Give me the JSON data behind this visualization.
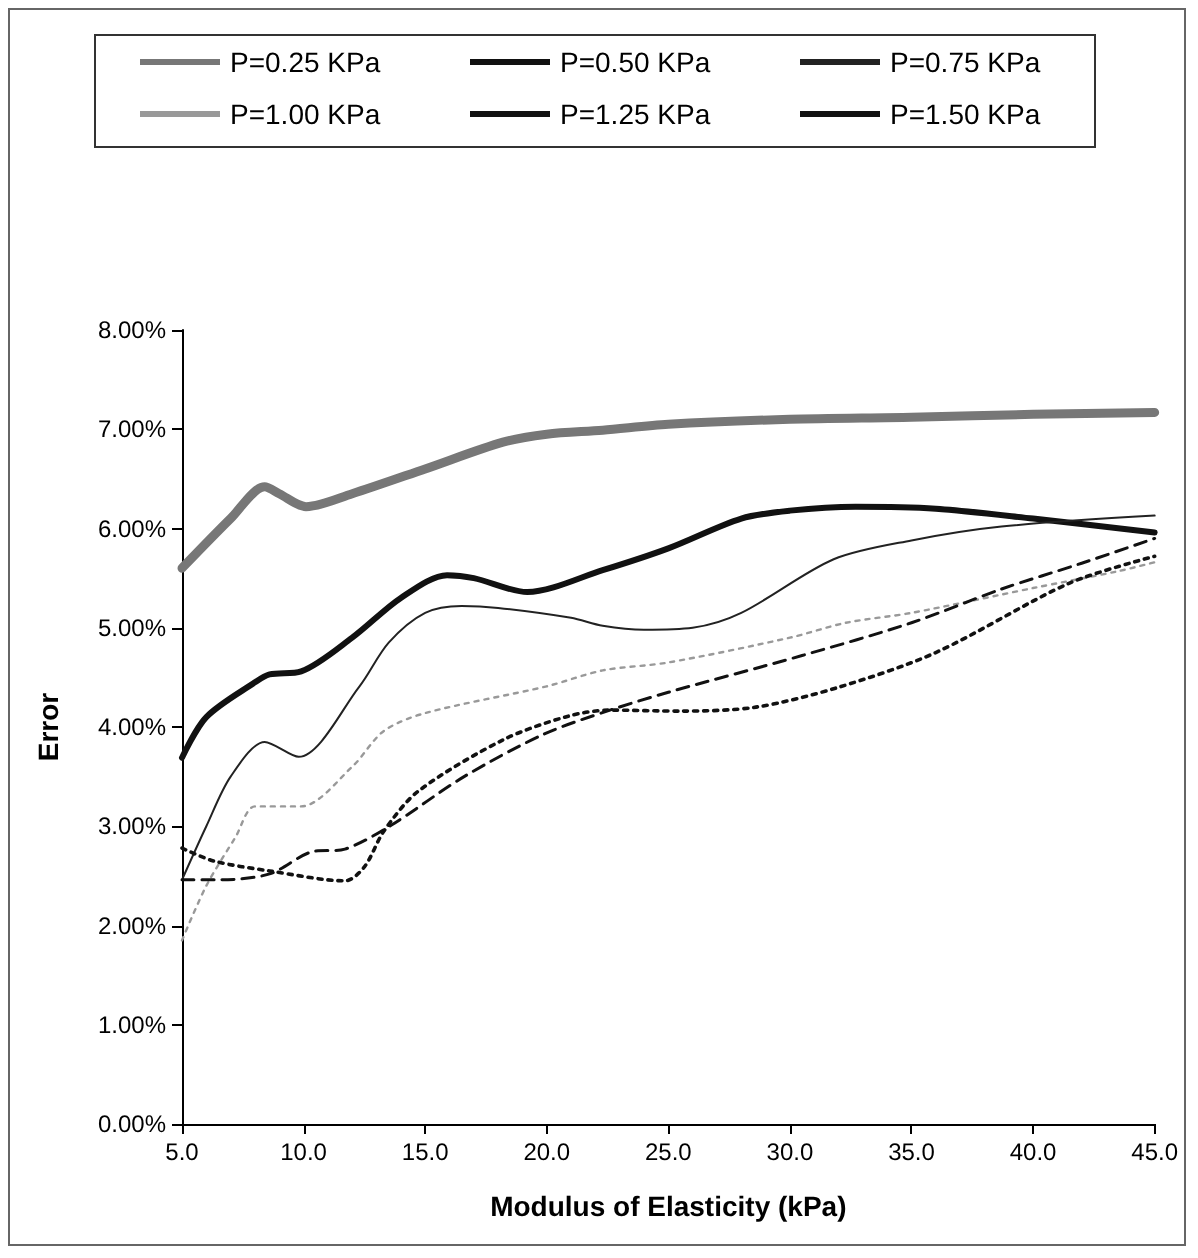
{
  "chart_data": {
    "type": "line",
    "xlabel": "Modulus of Elasticity (kPa)",
    "ylabel": "Error",
    "legend": "top",
    "grid": false,
    "xlim": [
      5,
      45
    ],
    "xticks": [
      {
        "value": 5,
        "label": "5.0"
      },
      {
        "value": 10,
        "label": "10.0"
      },
      {
        "value": 15,
        "label": "15.0"
      },
      {
        "value": 20,
        "label": "20.0"
      },
      {
        "value": 25,
        "label": "25.0"
      },
      {
        "value": 30,
        "label": "30.0"
      },
      {
        "value": 35,
        "label": "35.0"
      },
      {
        "value": 40,
        "label": "40.0"
      },
      {
        "value": 45,
        "label": "45.0"
      }
    ],
    "ylim": [
      0,
      8
    ],
    "yticks": [
      {
        "value": 0,
        "label": "0.00%"
      },
      {
        "value": 1,
        "label": "1.00%"
      },
      {
        "value": 2,
        "label": "2.00%"
      },
      {
        "value": 3,
        "label": "3.00%"
      },
      {
        "value": 4,
        "label": "4.00%"
      },
      {
        "value": 5,
        "label": "5.00%"
      },
      {
        "value": 6,
        "label": "6.00%"
      },
      {
        "value": 7,
        "label": "7.00%"
      },
      {
        "value": 8,
        "label": "8.00%"
      }
    ],
    "series": [
      {
        "name": "P=0.25 KPa",
        "color": "#777777",
        "line_style": "solid",
        "x": [
          5,
          7,
          8.4,
          9,
          10.1,
          12,
          15,
          18.2,
          20,
          22.3,
          25,
          30,
          35,
          40,
          45
        ],
        "values": [
          5.6,
          6.1,
          6.42,
          6.35,
          6.22,
          6.35,
          6.6,
          6.87,
          6.95,
          6.99,
          7.05,
          7.1,
          7.12,
          7.15,
          7.17
        ]
      },
      {
        "name": "P=0.50 KPa",
        "color": "#111111",
        "line_style": "solid",
        "x": [
          5,
          6,
          8,
          8.6,
          9.9,
          12,
          14,
          15.9,
          17,
          19.2,
          22.3,
          25,
          28,
          30,
          32.7,
          36,
          40,
          45
        ],
        "values": [
          3.69,
          4.1,
          4.45,
          4.53,
          4.56,
          4.9,
          5.3,
          5.53,
          5.5,
          5.36,
          5.58,
          5.8,
          6.1,
          6.18,
          6.22,
          6.2,
          6.1,
          5.96
        ]
      },
      {
        "name": "P=0.75 KPa",
        "color": "#222222",
        "line_style": "solid",
        "x": [
          5,
          6,
          7,
          8.4,
          9.8,
          12.3,
          13.5,
          15,
          16.5,
          18,
          21,
          22.3,
          24,
          26,
          28,
          31.8,
          35,
          38.7,
          45
        ],
        "values": [
          2.46,
          3.0,
          3.5,
          3.85,
          3.7,
          4.41,
          4.85,
          5.15,
          5.22,
          5.2,
          5.1,
          5.02,
          4.98,
          5.0,
          5.15,
          5.69,
          5.88,
          6.02,
          6.13
        ]
      },
      {
        "name": "P=1.00 KPa",
        "color": "#999999",
        "line_style": "dotted",
        "x": [
          5,
          6,
          7.2,
          8,
          9.9,
          12,
          13.3,
          15,
          20,
          22.3,
          25,
          30,
          32.3,
          35,
          40,
          43.5,
          45
        ],
        "values": [
          1.85,
          2.4,
          2.89,
          3.2,
          3.2,
          3.6,
          3.96,
          4.14,
          4.41,
          4.57,
          4.65,
          4.9,
          5.05,
          5.15,
          5.4,
          5.57,
          5.66
        ]
      },
      {
        "name": "P=1.25 KPa",
        "color": "#111111",
        "line_style": "dashed",
        "x": [
          5,
          6.6,
          8.6,
          10.3,
          11.7,
          13.6,
          16.6,
          19.9,
          22.6,
          25,
          30.5,
          35,
          38.7,
          42,
          45
        ],
        "values": [
          2.46,
          2.46,
          2.52,
          2.74,
          2.77,
          3.01,
          3.5,
          3.93,
          4.17,
          4.35,
          4.72,
          5.05,
          5.39,
          5.65,
          5.9
        ]
      },
      {
        "name": "P=1.50 KPa",
        "color": "#111111",
        "line_style": "dotted",
        "x": [
          5,
          6.3,
          8.6,
          11.7,
          12.5,
          13.3,
          14.7,
          18.2,
          20.9,
          22.6,
          25.5,
          28.6,
          32,
          36,
          41.5,
          45
        ],
        "values": [
          2.78,
          2.65,
          2.55,
          2.45,
          2.59,
          2.95,
          3.35,
          3.87,
          4.11,
          4.17,
          4.16,
          4.2,
          4.4,
          4.75,
          5.45,
          5.72
        ]
      }
    ]
  }
}
